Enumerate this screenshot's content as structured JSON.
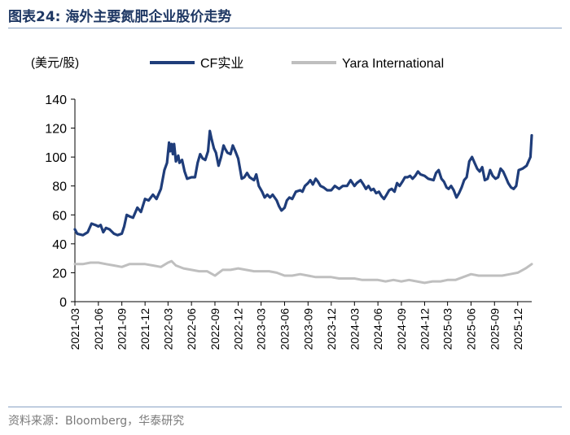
{
  "figure": {
    "title": "图表24:  海外主要氮肥企业股价走势",
    "source": "资料来源：Bloomberg，华泰研究"
  },
  "chart_data": {
    "type": "line",
    "ylabel": "(美元/股)",
    "ylim": [
      0,
      140
    ],
    "yticks": [
      0,
      20,
      40,
      60,
      80,
      100,
      120,
      140
    ],
    "xticks": [
      "2021-03",
      "2021-06",
      "2021-09",
      "2021-12",
      "2022-03",
      "2022-06",
      "2022-09",
      "2022-12",
      "2023-03",
      "2023-06",
      "2023-09",
      "2023-12",
      "2024-03",
      "2024-06",
      "2024-09",
      "2024-12",
      "2025-03",
      "2025-06",
      "2025-09",
      "2025-12"
    ],
    "grid": false,
    "legend_position": "top",
    "series": [
      {
        "name": "CF实业",
        "color": "#1f3d7a",
        "points": [
          [
            "2021-03-01",
            50
          ],
          [
            "2021-03-10",
            47
          ],
          [
            "2021-04-01",
            46
          ],
          [
            "2021-04-20",
            48
          ],
          [
            "2021-05-05",
            54
          ],
          [
            "2021-05-20",
            53
          ],
          [
            "2021-06-01",
            52
          ],
          [
            "2021-06-10",
            53
          ],
          [
            "2021-06-20",
            48
          ],
          [
            "2021-07-01",
            51
          ],
          [
            "2021-07-15",
            50
          ],
          [
            "2021-08-01",
            47
          ],
          [
            "2021-08-15",
            46
          ],
          [
            "2021-09-01",
            47
          ],
          [
            "2021-09-10",
            52
          ],
          [
            "2021-09-20",
            60
          ],
          [
            "2021-10-01",
            59
          ],
          [
            "2021-10-15",
            58
          ],
          [
            "2021-11-01",
            65
          ],
          [
            "2021-11-15",
            62
          ],
          [
            "2021-12-01",
            71
          ],
          [
            "2021-12-15",
            70
          ],
          [
            "2022-01-01",
            74
          ],
          [
            "2022-01-15",
            71
          ],
          [
            "2022-02-01",
            78
          ],
          [
            "2022-02-15",
            91
          ],
          [
            "2022-02-25",
            96
          ],
          [
            "2022-03-05",
            110
          ],
          [
            "2022-03-10",
            104
          ],
          [
            "2022-03-15",
            109
          ],
          [
            "2022-03-20",
            102
          ],
          [
            "2022-03-25",
            109
          ],
          [
            "2022-04-01",
            97
          ],
          [
            "2022-04-10",
            101
          ],
          [
            "2022-04-15",
            96
          ],
          [
            "2022-04-25",
            98
          ],
          [
            "2022-05-05",
            90
          ],
          [
            "2022-05-15",
            85
          ],
          [
            "2022-06-01",
            86
          ],
          [
            "2022-06-15",
            86
          ],
          [
            "2022-06-25",
            96
          ],
          [
            "2022-07-05",
            102
          ],
          [
            "2022-07-15",
            99
          ],
          [
            "2022-07-25",
            98
          ],
          [
            "2022-08-05",
            104
          ],
          [
            "2022-08-12",
            118
          ],
          [
            "2022-08-18",
            113
          ],
          [
            "2022-08-28",
            106
          ],
          [
            "2022-09-05",
            103
          ],
          [
            "2022-09-15",
            94
          ],
          [
            "2022-09-25",
            100
          ],
          [
            "2022-10-05",
            108
          ],
          [
            "2022-10-10",
            106
          ],
          [
            "2022-10-20",
            103
          ],
          [
            "2022-11-01",
            102
          ],
          [
            "2022-11-10",
            108
          ],
          [
            "2022-11-20",
            104
          ],
          [
            "2022-12-01",
            99
          ],
          [
            "2022-12-15",
            85
          ],
          [
            "2022-12-25",
            86
          ],
          [
            "2023-01-05",
            89
          ],
          [
            "2023-01-15",
            86
          ],
          [
            "2023-02-01",
            84
          ],
          [
            "2023-02-10",
            88
          ],
          [
            "2023-02-20",
            80
          ],
          [
            "2023-03-05",
            76
          ],
          [
            "2023-03-15",
            72
          ],
          [
            "2023-03-25",
            74
          ],
          [
            "2023-04-05",
            72
          ],
          [
            "2023-04-15",
            74
          ],
          [
            "2023-05-01",
            70
          ],
          [
            "2023-05-10",
            66
          ],
          [
            "2023-05-20",
            63
          ],
          [
            "2023-06-01",
            65
          ],
          [
            "2023-06-10",
            70
          ],
          [
            "2023-06-20",
            72
          ],
          [
            "2023-07-01",
            71
          ],
          [
            "2023-07-15",
            76
          ],
          [
            "2023-08-01",
            77
          ],
          [
            "2023-08-10",
            76
          ],
          [
            "2023-08-20",
            80
          ],
          [
            "2023-09-01",
            82
          ],
          [
            "2023-09-10",
            84
          ],
          [
            "2023-09-20",
            81
          ],
          [
            "2023-10-01",
            85
          ],
          [
            "2023-10-10",
            83
          ],
          [
            "2023-10-20",
            80
          ],
          [
            "2023-11-01",
            79
          ],
          [
            "2023-11-15",
            77
          ],
          [
            "2023-12-01",
            77
          ],
          [
            "2023-12-15",
            80
          ],
          [
            "2024-01-01",
            78
          ],
          [
            "2024-01-15",
            80
          ],
          [
            "2024-02-01",
            80
          ],
          [
            "2024-02-15",
            84
          ],
          [
            "2024-03-01",
            80
          ],
          [
            "2024-03-10",
            82
          ],
          [
            "2024-03-25",
            84
          ],
          [
            "2024-04-05",
            81
          ],
          [
            "2024-04-15",
            78
          ],
          [
            "2024-04-25",
            80
          ],
          [
            "2024-05-05",
            77
          ],
          [
            "2024-05-15",
            78
          ],
          [
            "2024-05-25",
            75
          ],
          [
            "2024-06-05",
            76
          ],
          [
            "2024-06-15",
            73
          ],
          [
            "2024-06-25",
            71
          ],
          [
            "2024-07-05",
            74
          ],
          [
            "2024-07-15",
            77
          ],
          [
            "2024-07-25",
            78
          ],
          [
            "2024-08-05",
            76
          ],
          [
            "2024-08-15",
            82
          ],
          [
            "2024-08-25",
            80
          ],
          [
            "2024-09-05",
            83
          ],
          [
            "2024-09-15",
            86
          ],
          [
            "2024-09-25",
            86
          ],
          [
            "2024-10-05",
            87
          ],
          [
            "2024-10-15",
            85
          ],
          [
            "2024-10-25",
            87
          ],
          [
            "2024-11-05",
            90
          ],
          [
            "2024-11-15",
            88
          ],
          [
            "2024-12-01",
            87
          ],
          [
            "2024-12-15",
            85
          ],
          [
            "2025-01-05",
            84
          ],
          [
            "2025-01-15",
            89
          ],
          [
            "2025-01-25",
            91
          ],
          [
            "2025-02-05",
            85
          ],
          [
            "2025-02-15",
            83
          ],
          [
            "2025-02-25",
            79
          ],
          [
            "2025-03-05",
            78
          ],
          [
            "2025-03-15",
            80
          ],
          [
            "2025-03-25",
            77
          ],
          [
            "2025-04-05",
            72
          ],
          [
            "2025-04-15",
            75
          ],
          [
            "2025-04-25",
            79
          ],
          [
            "2025-05-05",
            84
          ],
          [
            "2025-05-15",
            86
          ],
          [
            "2025-05-25",
            97
          ],
          [
            "2025-06-05",
            100
          ],
          [
            "2025-06-15",
            96
          ],
          [
            "2025-06-25",
            92
          ],
          [
            "2025-07-05",
            90
          ],
          [
            "2025-07-15",
            93
          ],
          [
            "2025-07-25",
            84
          ],
          [
            "2025-08-05",
            85
          ],
          [
            "2025-08-15",
            91
          ],
          [
            "2025-08-25",
            87
          ],
          [
            "2025-09-05",
            85
          ],
          [
            "2025-09-15",
            86
          ],
          [
            "2025-09-25",
            92
          ],
          [
            "2025-10-05",
            90
          ],
          [
            "2025-10-15",
            86
          ],
          [
            "2025-10-25",
            82
          ],
          [
            "2025-11-05",
            79
          ],
          [
            "2025-11-15",
            78
          ],
          [
            "2025-11-25",
            80
          ],
          [
            "2025-12-05",
            91
          ],
          [
            "2025-12-20",
            92
          ],
          [
            "2026-01-05",
            94
          ],
          [
            "2026-01-20",
            100
          ],
          [
            "2026-01-25",
            115
          ]
        ]
      },
      {
        "name": "Yara International",
        "color": "#bfbfbf",
        "points": [
          [
            "2021-03-01",
            26
          ],
          [
            "2021-04-01",
            26
          ],
          [
            "2021-05-01",
            27
          ],
          [
            "2021-06-01",
            27
          ],
          [
            "2021-07-01",
            26
          ],
          [
            "2021-08-01",
            25
          ],
          [
            "2021-09-01",
            24
          ],
          [
            "2021-10-01",
            26
          ],
          [
            "2021-11-01",
            26
          ],
          [
            "2021-12-01",
            26
          ],
          [
            "2022-01-01",
            25
          ],
          [
            "2022-02-01",
            24
          ],
          [
            "2022-03-01",
            27
          ],
          [
            "2022-03-15",
            28
          ],
          [
            "2022-04-01",
            25
          ],
          [
            "2022-05-01",
            23
          ],
          [
            "2022-06-01",
            22
          ],
          [
            "2022-07-01",
            21
          ],
          [
            "2022-08-01",
            21
          ],
          [
            "2022-09-01",
            18
          ],
          [
            "2022-10-01",
            22
          ],
          [
            "2022-11-01",
            22
          ],
          [
            "2022-12-01",
            23
          ],
          [
            "2023-01-01",
            22
          ],
          [
            "2023-02-01",
            21
          ],
          [
            "2023-03-01",
            21
          ],
          [
            "2023-04-01",
            21
          ],
          [
            "2023-05-01",
            20
          ],
          [
            "2023-06-01",
            18
          ],
          [
            "2023-07-01",
            18
          ],
          [
            "2023-08-01",
            19
          ],
          [
            "2023-09-01",
            18
          ],
          [
            "2023-10-01",
            17
          ],
          [
            "2023-11-01",
            17
          ],
          [
            "2023-12-01",
            17
          ],
          [
            "2024-01-01",
            16
          ],
          [
            "2024-02-01",
            16
          ],
          [
            "2024-03-01",
            16
          ],
          [
            "2024-04-01",
            15
          ],
          [
            "2024-05-01",
            15
          ],
          [
            "2024-06-01",
            15
          ],
          [
            "2024-07-01",
            14
          ],
          [
            "2024-08-01",
            15
          ],
          [
            "2024-09-01",
            14
          ],
          [
            "2024-10-01",
            15
          ],
          [
            "2024-11-01",
            14
          ],
          [
            "2024-12-01",
            13
          ],
          [
            "2025-01-01",
            14
          ],
          [
            "2025-02-01",
            14
          ],
          [
            "2025-03-01",
            15
          ],
          [
            "2025-04-01",
            15
          ],
          [
            "2025-05-01",
            17
          ],
          [
            "2025-06-01",
            19
          ],
          [
            "2025-07-01",
            18
          ],
          [
            "2025-08-01",
            18
          ],
          [
            "2025-09-01",
            18
          ],
          [
            "2025-10-01",
            18
          ],
          [
            "2025-11-01",
            19
          ],
          [
            "2025-12-01",
            20
          ],
          [
            "2026-01-01",
            23
          ],
          [
            "2026-01-25",
            26
          ]
        ]
      }
    ]
  }
}
